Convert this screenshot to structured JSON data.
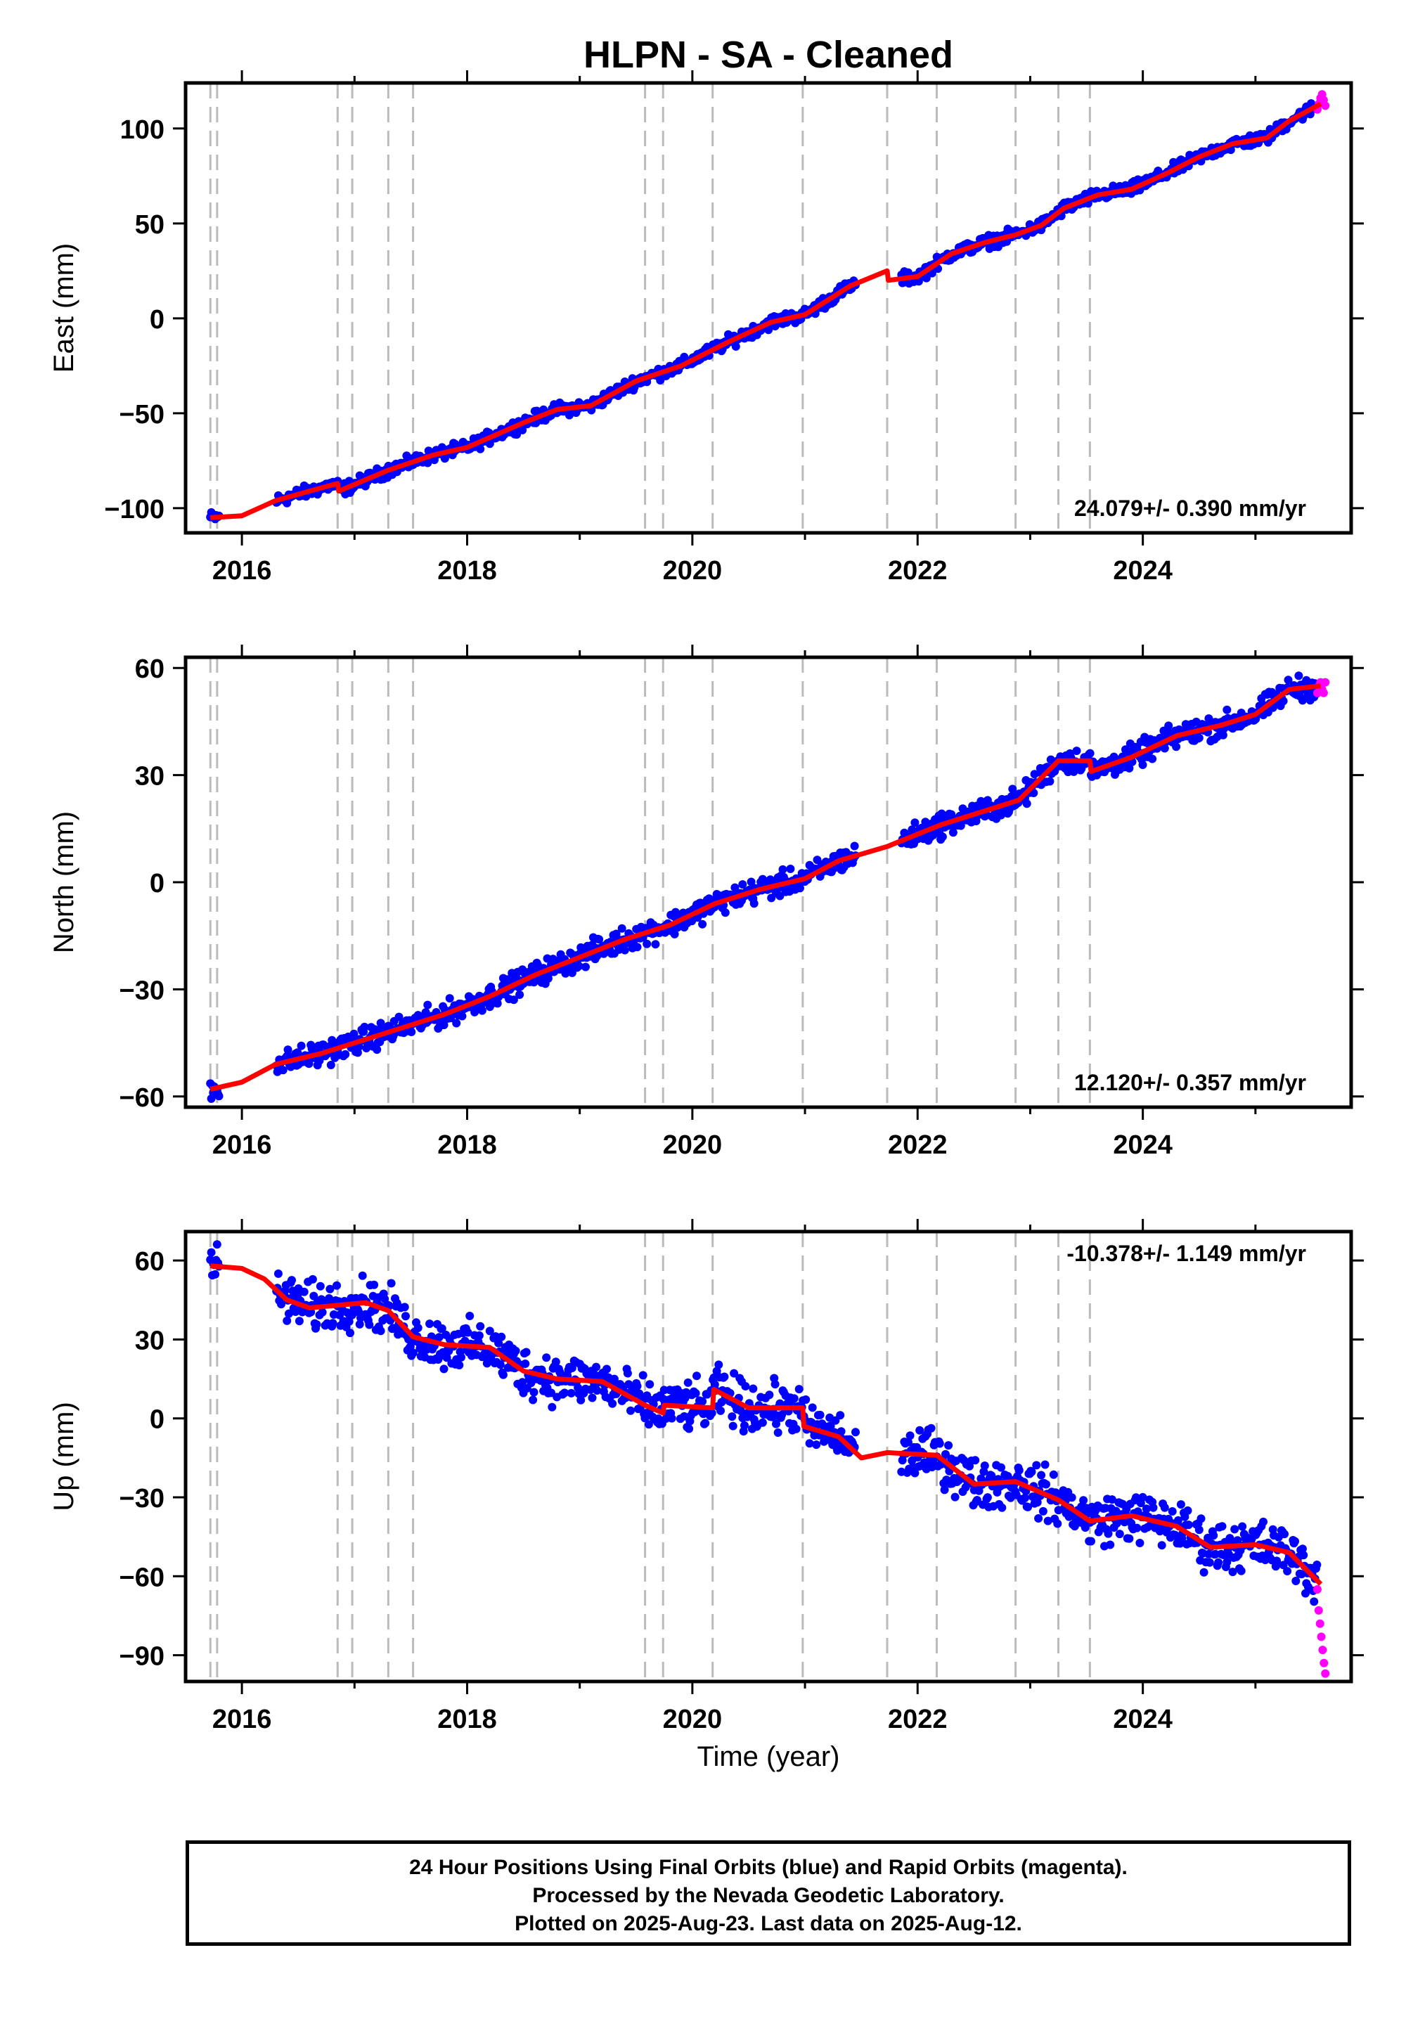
{
  "title": "HLPN  - SA - Cleaned",
  "xlabel": "Time (year)",
  "colors": {
    "final": "#0000ff",
    "rapid": "#ff00ff",
    "model": "#ff0000",
    "steps": "#bbbbbb"
  },
  "footer": {
    "line1": "24 Hour Positions Using Final Orbits (blue) and Rapid Orbits (magenta).",
    "line2": "Processed by the Nevada Geodetic Laboratory.",
    "line3": "Plotted on 2025-Aug-23. Last data on 2025-Aug-12."
  },
  "chart_data": [
    {
      "type": "scatter",
      "component": "east",
      "ylabel": "East (mm)",
      "xlim": [
        2015.5,
        2025.85
      ],
      "ylim": [
        -113,
        124
      ],
      "xticks": [
        2016,
        2018,
        2020,
        2022,
        2024
      ],
      "yticks": [
        -100,
        -50,
        0,
        50,
        100
      ],
      "ytick_labels": [
        "−100",
        "−50",
        "0",
        "50",
        "100"
      ],
      "rate_label": "24.079+/- 0.390 mm/yr",
      "rate_position": "bottom-right",
      "steps": [
        2015.72,
        2015.78,
        2016.85,
        2016.98,
        2017.3,
        2017.52,
        2019.58,
        2019.74,
        2020.18,
        2020.98,
        2021.73,
        2022.17,
        2022.87,
        2023.25,
        2023.53
      ],
      "model": [
        [
          2015.72,
          -105
        ],
        [
          2016.0,
          -104
        ],
        [
          2016.3,
          -96
        ],
        [
          2016.6,
          -91
        ],
        [
          2016.85,
          -87
        ],
        [
          2016.86,
          -91
        ],
        [
          2017.3,
          -80
        ],
        [
          2017.7,
          -72
        ],
        [
          2018.0,
          -68
        ],
        [
          2018.5,
          -55
        ],
        [
          2018.8,
          -48
        ],
        [
          2019.1,
          -46
        ],
        [
          2019.5,
          -33
        ],
        [
          2019.9,
          -25
        ],
        [
          2020.3,
          -13
        ],
        [
          2020.7,
          -2
        ],
        [
          2021.0,
          2
        ],
        [
          2021.4,
          17
        ],
        [
          2021.73,
          25
        ],
        [
          2021.74,
          20
        ],
        [
          2022.0,
          22
        ],
        [
          2022.3,
          34
        ],
        [
          2022.6,
          40
        ],
        [
          2022.87,
          44
        ],
        [
          2023.1,
          49
        ],
        [
          2023.3,
          58
        ],
        [
          2023.6,
          65
        ],
        [
          2023.9,
          68
        ],
        [
          2024.2,
          76
        ],
        [
          2024.5,
          85
        ],
        [
          2024.8,
          92
        ],
        [
          2025.1,
          95
        ],
        [
          2025.3,
          104
        ],
        [
          2025.58,
          113
        ]
      ],
      "gaps": [
        [
          2015.8,
          2016.3
        ],
        [
          2021.45,
          2021.85
        ]
      ],
      "noise_amp": 2.5,
      "rapid": {
        "x_range": [
          2025.55,
          2025.62
        ],
        "y_values": [
          110,
          113,
          116,
          118,
          115,
          112
        ]
      }
    },
    {
      "type": "scatter",
      "component": "north",
      "ylabel": "North (mm)",
      "xlim": [
        2015.5,
        2025.85
      ],
      "ylim": [
        -63,
        63
      ],
      "xticks": [
        2016,
        2018,
        2020,
        2022,
        2024
      ],
      "yticks": [
        -60,
        -30,
        0,
        30,
        60
      ],
      "ytick_labels": [
        "−60",
        "−30",
        "0",
        "30",
        "60"
      ],
      "rate_label": "12.120+/- 0.357 mm/yr",
      "rate_position": "bottom-right",
      "steps": [
        2015.72,
        2015.78,
        2016.85,
        2016.98,
        2017.3,
        2017.52,
        2019.58,
        2019.74,
        2020.18,
        2020.98,
        2021.73,
        2022.17,
        2022.87,
        2023.25,
        2023.53
      ],
      "model": [
        [
          2015.72,
          -58
        ],
        [
          2016.0,
          -56
        ],
        [
          2016.3,
          -51
        ],
        [
          2016.7,
          -48
        ],
        [
          2017.0,
          -45
        ],
        [
          2017.4,
          -41
        ],
        [
          2017.8,
          -37
        ],
        [
          2018.2,
          -32
        ],
        [
          2018.6,
          -26
        ],
        [
          2019.0,
          -21
        ],
        [
          2019.4,
          -16
        ],
        [
          2019.8,
          -12
        ],
        [
          2020.2,
          -6
        ],
        [
          2020.6,
          -2
        ],
        [
          2021.0,
          1
        ],
        [
          2021.3,
          6
        ],
        [
          2021.73,
          10
        ],
        [
          2022.2,
          16
        ],
        [
          2022.5,
          19
        ],
        [
          2022.9,
          23
        ],
        [
          2023.25,
          34
        ],
        [
          2023.53,
          34
        ],
        [
          2023.54,
          31
        ],
        [
          2023.9,
          35
        ],
        [
          2024.3,
          41
        ],
        [
          2024.7,
          44
        ],
        [
          2025.0,
          47
        ],
        [
          2025.3,
          54
        ],
        [
          2025.58,
          55
        ]
      ],
      "gaps": [
        [
          2015.8,
          2016.3
        ],
        [
          2021.45,
          2021.85
        ]
      ],
      "noise_amp": 2.5,
      "rapid": {
        "x_range": [
          2025.55,
          2025.62
        ],
        "y_values": [
          53,
          55,
          56,
          54,
          53,
          56
        ]
      }
    },
    {
      "type": "scatter",
      "component": "up",
      "ylabel": "Up (mm)",
      "xlim": [
        2015.5,
        2025.85
      ],
      "ylim": [
        -100,
        71
      ],
      "xticks": [
        2016,
        2018,
        2020,
        2022,
        2024
      ],
      "yticks": [
        -90,
        -60,
        -30,
        0,
        30,
        60
      ],
      "ytick_labels": [
        "−90",
        "−60",
        "−30",
        "0",
        "30",
        "60"
      ],
      "rate_label": "-10.378+/- 1.149 mm/yr",
      "rate_position": "top-right",
      "steps": [
        2015.72,
        2015.78,
        2016.85,
        2016.98,
        2017.3,
        2017.52,
        2019.58,
        2019.74,
        2020.18,
        2020.98,
        2021.73,
        2022.17,
        2022.87,
        2023.25,
        2023.53
      ],
      "model": [
        [
          2015.72,
          58
        ],
        [
          2016.0,
          57
        ],
        [
          2016.2,
          53
        ],
        [
          2016.4,
          45
        ],
        [
          2016.6,
          42
        ],
        [
          2016.85,
          43
        ],
        [
          2017.1,
          44
        ],
        [
          2017.3,
          41
        ],
        [
          2017.52,
          31
        ],
        [
          2017.8,
          28
        ],
        [
          2018.2,
          27
        ],
        [
          2018.5,
          18
        ],
        [
          2018.8,
          15
        ],
        [
          2019.2,
          14
        ],
        [
          2019.58,
          5
        ],
        [
          2019.74,
          2
        ],
        [
          2019.75,
          5
        ],
        [
          2020.18,
          4
        ],
        [
          2020.19,
          11
        ],
        [
          2020.5,
          4
        ],
        [
          2020.98,
          4
        ],
        [
          2020.99,
          -3
        ],
        [
          2021.3,
          -7
        ],
        [
          2021.5,
          -15
        ],
        [
          2021.73,
          -13
        ],
        [
          2022.17,
          -14
        ],
        [
          2022.5,
          -25
        ],
        [
          2022.87,
          -24
        ],
        [
          2023.25,
          -31
        ],
        [
          2023.53,
          -39
        ],
        [
          2023.9,
          -37
        ],
        [
          2024.3,
          -41
        ],
        [
          2024.6,
          -49
        ],
        [
          2025.0,
          -48
        ],
        [
          2025.3,
          -51
        ],
        [
          2025.58,
          -63
        ]
      ],
      "gaps": [
        [
          2015.8,
          2016.3
        ],
        [
          2021.45,
          2021.85
        ]
      ],
      "noise_amp": 7,
      "rapid": {
        "x_range": [
          2025.55,
          2025.62
        ],
        "y_values": [
          -65,
          -73,
          -78,
          -83,
          -88,
          -93,
          -97
        ]
      }
    }
  ]
}
